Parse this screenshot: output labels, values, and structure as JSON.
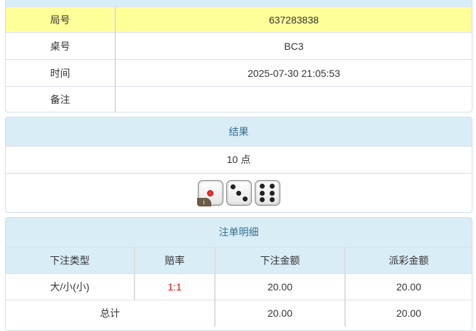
{
  "info": {
    "rows": [
      {
        "label": "局号",
        "value": "637283838"
      },
      {
        "label": "桌号",
        "value": "BC3"
      },
      {
        "label": "时间",
        "value": "2025-07-30 21:05:53"
      },
      {
        "label": "备注",
        "value": ""
      }
    ]
  },
  "result": {
    "title": "结果",
    "points": "10 点",
    "dice": [
      1,
      3,
      6
    ],
    "info_badge": "i"
  },
  "bets": {
    "title": "注单明细",
    "headers": [
      "下注类型",
      "赔率",
      "下注金额",
      "派彩金额"
    ],
    "rows": [
      {
        "type": "大/小(小)",
        "odds": "1:1",
        "amount": "20.00",
        "payout": "20.00"
      }
    ],
    "total": {
      "label": "总计",
      "amount": "20.00",
      "payout": "20.00"
    }
  },
  "colors": {
    "highlight": "#ffff99",
    "header": "#d9edf7",
    "odds": "#ee0000"
  }
}
